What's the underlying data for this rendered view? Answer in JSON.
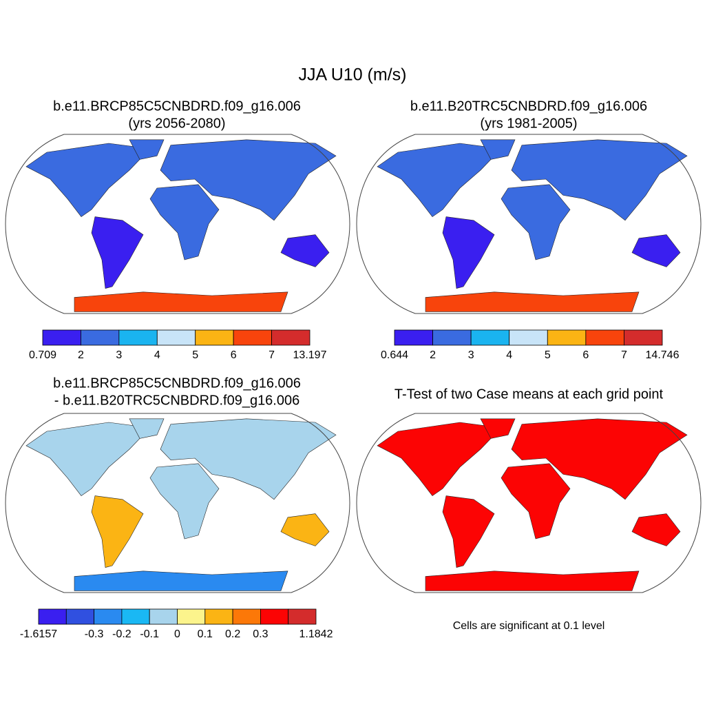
{
  "title": "JJA U10 (m/s)",
  "panels": [
    {
      "title": [
        "b.e11.BRCP85C5CNBDRD.f09_g16.006",
        "(yrs 2056-2080)"
      ],
      "colorbar": {
        "colors": [
          "#3a1ff0",
          "#3a6be0",
          "#1ab4f0",
          "#c8e4f8",
          "#fbb414",
          "#f8440c",
          "#d42c2c"
        ],
        "labels": [
          0.709,
          2,
          3,
          4,
          5,
          6,
          7,
          13.197
        ]
      }
    },
    {
      "title": [
        "b.e11.B20TRC5CNBDRD.f09_g16.006",
        "(yrs 1981-2005)"
      ],
      "colorbar": {
        "colors": [
          "#3a1ff0",
          "#3a6be0",
          "#1ab4f0",
          "#c8e4f8",
          "#fbb414",
          "#f8440c",
          "#d42c2c"
        ],
        "labels": [
          0.644,
          2,
          3,
          4,
          5,
          6,
          7,
          14.746
        ]
      }
    },
    {
      "title": [
        "b.e11.BRCP85C5CNBDRD.f09_g16.006",
        "- b.e11.B20TRC5CNBDRD.f09_g16.006"
      ],
      "colorbar": {
        "colors": [
          "#3a1ff0",
          "#3050e0",
          "#2a8af0",
          "#1ab8f4",
          "#a8d4ec",
          "#fcf48c",
          "#fbb414",
          "#fc7808",
          "#fc0404",
          "#d42c2c"
        ],
        "labels": [
          -1.6157,
          null,
          -0.3,
          -0.2,
          -0.1,
          0,
          0.1,
          0.2,
          0.3,
          null,
          1.1842
        ]
      }
    },
    {
      "title": [
        "T-Test of two Case means at each grid point"
      ],
      "note": "Cells are significant at 0.1 level"
    }
  ]
}
